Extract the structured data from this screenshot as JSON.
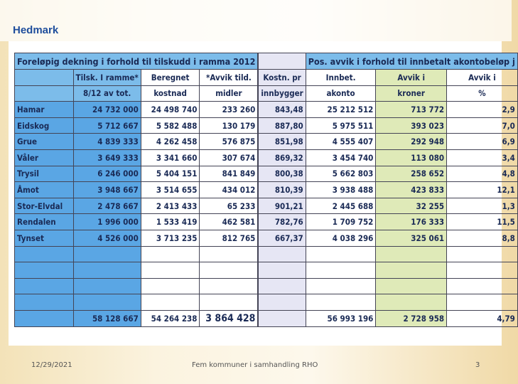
{
  "header": {
    "title": "Hedmark"
  },
  "table": {
    "sections": [
      "Foreløpig dekning i forhold til tilskudd i ramma 2012",
      "Pos. avvik i forhold til innbetalt akontobeløp j"
    ],
    "columns": [
      [
        "Tilsk. I ramme*",
        "8/12 av tot."
      ],
      [
        "Beregnet",
        "kostnad"
      ],
      [
        "*Avvik tild.",
        "midler"
      ],
      [
        "Kostn. pr",
        "innbygger"
      ],
      [
        "Innbet.",
        "akonto"
      ],
      [
        "Avvik i",
        "kroner"
      ],
      [
        "Avvik i",
        "%"
      ]
    ],
    "rows": [
      [
        "Hamar",
        "24 732 000",
        "24 498 740",
        "233 260",
        "843,48",
        "25 212 512",
        "713 772",
        "2,9"
      ],
      [
        "Eidskog",
        "5 712 667",
        "5 582 488",
        "130 179",
        "887,80",
        "5 975 511",
        "393 023",
        "7,0"
      ],
      [
        "Grue",
        "4 839 333",
        "4 262 458",
        "576 875",
        "851,98",
        "4 555 407",
        "292 948",
        "6,9"
      ],
      [
        "Våler",
        "3 649 333",
        "3 341 660",
        "307 674",
        "869,32",
        "3 454 740",
        "113 080",
        "3,4"
      ],
      [
        "Trysil",
        "6 246 000",
        "5 404 151",
        "841 849",
        "800,38",
        "5 662 803",
        "258 652",
        "4,8"
      ],
      [
        "Åmot",
        "3 948 667",
        "3 514 655",
        "434 012",
        "810,39",
        "3 938 488",
        "423 833",
        "12,1"
      ],
      [
        "Stor-Elvdal",
        "2 478 667",
        "2 413 433",
        "65 233",
        "901,21",
        "2 445 688",
        "32 255",
        "1,3"
      ],
      [
        "Rendalen",
        "1 996 000",
        "1 533 419",
        "462 581",
        "782,76",
        "1 709 752",
        "176 333",
        "11,5"
      ],
      [
        "Tynset",
        "4 526 000",
        "3 713 235",
        "812 765",
        "667,37",
        "4 038 296",
        "325 061",
        "8,8"
      ]
    ],
    "totals": [
      "58 128 667",
      "54 264 238",
      "3 864 428",
      "56 993 196",
      "2 728 958",
      "4,79"
    ]
  },
  "footer": {
    "date": "12/29/2021",
    "text": "Fem kommuner i samhandling RHO",
    "page": "3"
  }
}
